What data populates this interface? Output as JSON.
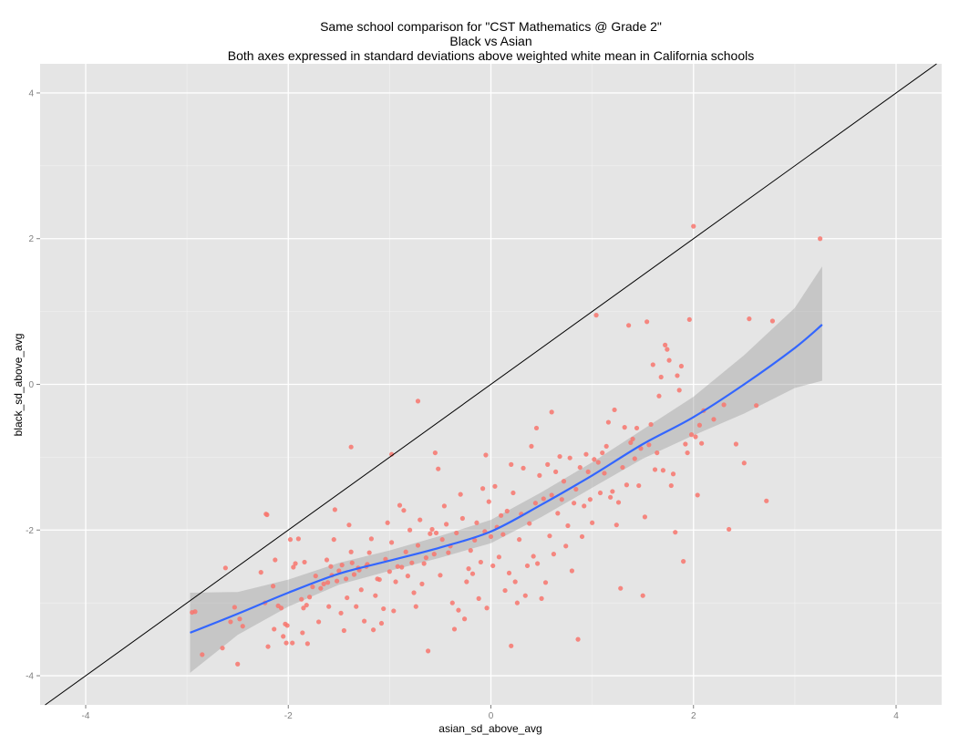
{
  "chart_data": {
    "type": "scatter",
    "title": "Same school comparison for \"CST Mathematics @ Grade 2\"",
    "subtitle_lines": [
      "Black vs Asian",
      "Both axes expressed in standard deviations above weighted white mean in California schools"
    ],
    "xlabel": "asian_sd_above_avg",
    "ylabel": "black_sd_above_avg",
    "xlim": [
      -4.45,
      4.45
    ],
    "ylim": [
      -4.4,
      4.4
    ],
    "xticks": [
      -4,
      -2,
      0,
      2,
      4
    ],
    "yticks": [
      -4,
      -2,
      0,
      2,
      4
    ],
    "tick_labels_x": [
      "-4",
      "-2",
      "0",
      "2",
      "4"
    ],
    "tick_labels_y": [
      "-4",
      "-2",
      "0",
      "2",
      "4"
    ],
    "grid": true,
    "background_color": "#e5e5e5",
    "point_color": "#f8766d",
    "smooth_color": "#3366ff",
    "ribbon_color": "#999999",
    "reference_line": {
      "slope": 1,
      "intercept": 0,
      "color": "#000000"
    },
    "points": [
      [
        -2.95,
        -3.13
      ],
      [
        -2.92,
        -3.12
      ],
      [
        -2.85,
        -3.71
      ],
      [
        -2.65,
        -3.62
      ],
      [
        -2.62,
        -2.52
      ],
      [
        -2.57,
        -3.26
      ],
      [
        -2.53,
        -3.06
      ],
      [
        -2.5,
        -3.84
      ],
      [
        -2.48,
        -3.22
      ],
      [
        -2.45,
        -3.32
      ],
      [
        -2.27,
        -2.58
      ],
      [
        -2.23,
        -3.0
      ],
      [
        -2.22,
        -1.78
      ],
      [
        -2.21,
        -1.79
      ],
      [
        -2.2,
        -3.6
      ],
      [
        -2.15,
        -2.77
      ],
      [
        -2.14,
        -3.36
      ],
      [
        -2.13,
        -2.41
      ],
      [
        -2.1,
        -3.04
      ],
      [
        -2.07,
        -3.07
      ],
      [
        -2.05,
        -3.46
      ],
      [
        -2.03,
        -3.29
      ],
      [
        -2.02,
        -3.55
      ],
      [
        -2.01,
        -3.31
      ],
      [
        -1.98,
        -2.13
      ],
      [
        -1.96,
        -3.55
      ],
      [
        -1.95,
        -2.51
      ],
      [
        -1.93,
        -2.46
      ],
      [
        -1.9,
        -2.12
      ],
      [
        -1.87,
        -2.95
      ],
      [
        -1.86,
        -3.41
      ],
      [
        -1.85,
        -3.07
      ],
      [
        -1.84,
        -2.44
      ],
      [
        -1.82,
        -3.03
      ],
      [
        -1.81,
        -3.56
      ],
      [
        -1.79,
        -2.92
      ],
      [
        -1.76,
        -2.78
      ],
      [
        -1.73,
        -2.63
      ],
      [
        -1.7,
        -3.26
      ],
      [
        -1.68,
        -2.8
      ],
      [
        -1.65,
        -2.74
      ],
      [
        -1.62,
        -2.41
      ],
      [
        -1.61,
        -2.72
      ],
      [
        -1.6,
        -3.05
      ],
      [
        -1.58,
        -2.5
      ],
      [
        -1.57,
        -2.62
      ],
      [
        -1.55,
        -2.13
      ],
      [
        -1.54,
        -1.72
      ],
      [
        -1.52,
        -2.7
      ],
      [
        -1.5,
        -2.56
      ],
      [
        -1.48,
        -3.14
      ],
      [
        -1.47,
        -2.48
      ],
      [
        -1.45,
        -3.38
      ],
      [
        -1.43,
        -2.67
      ],
      [
        -1.42,
        -2.93
      ],
      [
        -1.4,
        -1.93
      ],
      [
        -1.38,
        -2.3
      ],
      [
        -1.37,
        -2.45
      ],
      [
        -1.35,
        -2.61
      ],
      [
        -1.33,
        -3.05
      ],
      [
        -1.31,
        -2.52
      ],
      [
        -1.3,
        -2.55
      ],
      [
        -1.28,
        -2.82
      ],
      [
        -1.25,
        -3.25
      ],
      [
        -1.23,
        -2.5
      ],
      [
        -1.22,
        -2.47
      ],
      [
        -1.2,
        -2.31
      ],
      [
        -1.18,
        -2.12
      ],
      [
        -1.16,
        -3.37
      ],
      [
        -1.14,
        -2.9
      ],
      [
        -1.12,
        -2.67
      ],
      [
        -1.1,
        -2.68
      ],
      [
        -1.08,
        -3.28
      ],
      [
        -1.06,
        -3.08
      ],
      [
        -1.04,
        -2.4
      ],
      [
        -1.02,
        -1.9
      ],
      [
        -1.0,
        -2.57
      ],
      [
        -0.98,
        -2.17
      ],
      [
        -0.96,
        -3.11
      ],
      [
        -0.94,
        -2.71
      ],
      [
        -0.92,
        -2.5
      ],
      [
        -0.9,
        -1.66
      ],
      [
        -0.88,
        -2.51
      ],
      [
        -0.86,
        -1.73
      ],
      [
        -0.84,
        -2.3
      ],
      [
        -0.82,
        -2.63
      ],
      [
        -0.8,
        -2.0
      ],
      [
        -0.78,
        -2.45
      ],
      [
        -0.76,
        -2.86
      ],
      [
        -0.74,
        -3.05
      ],
      [
        -0.72,
        -2.21
      ],
      [
        -0.7,
        -1.86
      ],
      [
        -0.68,
        -2.74
      ],
      [
        -0.66,
        -2.46
      ],
      [
        -0.64,
        -2.38
      ],
      [
        -0.62,
        -3.66
      ],
      [
        -0.6,
        -2.05
      ],
      [
        -0.58,
        -1.99
      ],
      [
        -0.56,
        -2.33
      ],
      [
        -0.54,
        -2.04
      ],
      [
        -0.52,
        -1.16
      ],
      [
        -0.5,
        -2.62
      ],
      [
        -0.48,
        -2.13
      ],
      [
        -0.46,
        -1.67
      ],
      [
        -0.44,
        -1.92
      ],
      [
        -0.42,
        -2.31
      ],
      [
        -0.4,
        -2.22
      ],
      [
        -0.38,
        -3.0
      ],
      [
        -0.36,
        -3.36
      ],
      [
        -0.34,
        -2.04
      ],
      [
        -0.32,
        -3.1
      ],
      [
        -0.3,
        -1.51
      ],
      [
        -0.28,
        -1.84
      ],
      [
        -0.26,
        -3.22
      ],
      [
        -0.24,
        -2.71
      ],
      [
        -0.22,
        -2.53
      ],
      [
        -0.2,
        -2.28
      ],
      [
        -0.18,
        -2.6
      ],
      [
        -0.16,
        -2.14
      ],
      [
        -0.14,
        -1.9
      ],
      [
        -0.12,
        -2.94
      ],
      [
        -0.1,
        -2.44
      ],
      [
        -0.08,
        -1.43
      ],
      [
        -0.06,
        -2.02
      ],
      [
        -0.04,
        -3.07
      ],
      [
        -0.02,
        -1.61
      ],
      [
        0.0,
        -2.09
      ],
      [
        0.02,
        -2.49
      ],
      [
        0.04,
        -1.4
      ],
      [
        0.06,
        -1.96
      ],
      [
        0.08,
        -2.37
      ],
      [
        0.1,
        -1.8
      ],
      [
        0.12,
        -2.06
      ],
      [
        0.14,
        -2.83
      ],
      [
        0.16,
        -1.74
      ],
      [
        0.18,
        -2.59
      ],
      [
        0.2,
        -3.59
      ],
      [
        0.22,
        -1.49
      ],
      [
        0.24,
        -2.71
      ],
      [
        0.26,
        -3.0
      ],
      [
        0.28,
        -2.13
      ],
      [
        0.3,
        -1.78
      ],
      [
        0.32,
        -1.15
      ],
      [
        0.34,
        -2.9
      ],
      [
        0.36,
        -2.49
      ],
      [
        0.38,
        -1.91
      ],
      [
        0.4,
        -0.85
      ],
      [
        0.42,
        -2.36
      ],
      [
        0.44,
        -1.63
      ],
      [
        0.46,
        -2.46
      ],
      [
        0.48,
        -1.25
      ],
      [
        0.5,
        -2.94
      ],
      [
        0.52,
        -1.57
      ],
      [
        0.54,
        -2.72
      ],
      [
        0.56,
        -1.1
      ],
      [
        0.58,
        -2.08
      ],
      [
        0.6,
        -1.52
      ],
      [
        0.62,
        -2.33
      ],
      [
        0.64,
        -1.2
      ],
      [
        0.66,
        -1.77
      ],
      [
        0.68,
        -0.99
      ],
      [
        0.7,
        -1.58
      ],
      [
        0.72,
        -1.33
      ],
      [
        0.74,
        -2.22
      ],
      [
        0.76,
        -1.94
      ],
      [
        0.78,
        -1.01
      ],
      [
        0.8,
        -2.56
      ],
      [
        0.82,
        -1.63
      ],
      [
        0.84,
        -1.44
      ],
      [
        0.86,
        -3.5
      ],
      [
        0.88,
        -1.14
      ],
      [
        0.9,
        -2.09
      ],
      [
        0.92,
        -1.67
      ],
      [
        0.94,
        -0.96
      ],
      [
        0.96,
        -1.2
      ],
      [
        0.98,
        -1.58
      ],
      [
        1.0,
        -1.9
      ],
      [
        1.02,
        -1.03
      ],
      [
        1.04,
        0.95
      ],
      [
        1.06,
        -1.07
      ],
      [
        1.08,
        -1.49
      ],
      [
        1.1,
        -0.94
      ],
      [
        1.12,
        -1.22
      ],
      [
        1.14,
        -0.85
      ],
      [
        1.16,
        -0.52
      ],
      [
        1.18,
        -1.55
      ],
      [
        1.2,
        -1.47
      ],
      [
        1.22,
        -0.35
      ],
      [
        1.24,
        -1.93
      ],
      [
        1.26,
        -1.62
      ],
      [
        1.28,
        -2.8
      ],
      [
        1.3,
        -1.14
      ],
      [
        1.32,
        -0.59
      ],
      [
        1.34,
        -1.38
      ],
      [
        1.36,
        0.81
      ],
      [
        1.38,
        -0.8
      ],
      [
        1.4,
        -0.75
      ],
      [
        1.42,
        -1.02
      ],
      [
        1.44,
        -0.6
      ],
      [
        1.46,
        -1.39
      ],
      [
        1.48,
        -0.88
      ],
      [
        1.5,
        -2.9
      ],
      [
        1.52,
        -1.82
      ],
      [
        1.54,
        0.86
      ],
      [
        1.56,
        -0.83
      ],
      [
        1.58,
        -0.55
      ],
      [
        1.6,
        0.27
      ],
      [
        1.62,
        -1.17
      ],
      [
        1.64,
        -0.94
      ],
      [
        1.66,
        -0.16
      ],
      [
        1.68,
        0.1
      ],
      [
        1.7,
        -1.18
      ],
      [
        1.72,
        0.54
      ],
      [
        1.74,
        0.48
      ],
      [
        1.76,
        0.33
      ],
      [
        1.78,
        -1.39
      ],
      [
        1.8,
        -1.23
      ],
      [
        1.82,
        -2.03
      ],
      [
        1.84,
        0.12
      ],
      [
        1.86,
        -0.08
      ],
      [
        1.88,
        0.25
      ],
      [
        1.9,
        -2.43
      ],
      [
        1.92,
        -0.82
      ],
      [
        1.94,
        -0.94
      ],
      [
        1.96,
        0.89
      ],
      [
        1.98,
        -0.69
      ],
      [
        2.0,
        2.17
      ],
      [
        2.02,
        -0.72
      ],
      [
        2.04,
        -1.52
      ],
      [
        2.06,
        -0.56
      ],
      [
        2.08,
        -0.81
      ],
      [
        2.1,
        -0.36
      ],
      [
        2.2,
        -0.48
      ],
      [
        2.3,
        -0.28
      ],
      [
        2.35,
        -1.99
      ],
      [
        2.42,
        -0.82
      ],
      [
        2.5,
        -1.08
      ],
      [
        2.55,
        0.9
      ],
      [
        2.62,
        -0.29
      ],
      [
        2.72,
        -1.6
      ],
      [
        2.78,
        0.87
      ],
      [
        3.25,
        2.0
      ],
      [
        -0.72,
        -0.23
      ],
      [
        -1.38,
        -0.86
      ],
      [
        -0.98,
        -0.96
      ],
      [
        -0.55,
        -0.94
      ],
      [
        -0.05,
        -0.97
      ],
      [
        0.2,
        -1.1
      ],
      [
        0.45,
        -0.6
      ],
      [
        0.6,
        -0.38
      ]
    ],
    "smooth_line": [
      [
        -2.97,
        -3.41
      ],
      [
        -2.5,
        -3.15
      ],
      [
        -2.0,
        -2.86
      ],
      [
        -1.5,
        -2.6
      ],
      [
        -1.0,
        -2.42
      ],
      [
        -0.5,
        -2.24
      ],
      [
        0.0,
        -2.02
      ],
      [
        0.5,
        -1.65
      ],
      [
        1.0,
        -1.25
      ],
      [
        1.5,
        -0.82
      ],
      [
        2.0,
        -0.45
      ],
      [
        2.5,
        0.0
      ],
      [
        3.0,
        0.5
      ],
      [
        3.27,
        0.82
      ]
    ],
    "ribbon_upper": [
      [
        -2.97,
        -2.86
      ],
      [
        -2.5,
        -2.85
      ],
      [
        -2.0,
        -2.68
      ],
      [
        -1.5,
        -2.45
      ],
      [
        -1.0,
        -2.28
      ],
      [
        -0.5,
        -2.08
      ],
      [
        0.0,
        -1.86
      ],
      [
        0.5,
        -1.48
      ],
      [
        1.0,
        -1.07
      ],
      [
        1.5,
        -0.62
      ],
      [
        2.0,
        -0.17
      ],
      [
        2.5,
        0.4
      ],
      [
        3.0,
        1.05
      ],
      [
        3.27,
        1.62
      ]
    ],
    "ribbon_lower": [
      [
        -2.97,
        -3.96
      ],
      [
        -2.5,
        -3.44
      ],
      [
        -2.0,
        -3.05
      ],
      [
        -1.5,
        -2.75
      ],
      [
        -1.0,
        -2.56
      ],
      [
        -0.5,
        -2.38
      ],
      [
        0.0,
        -2.18
      ],
      [
        0.5,
        -1.82
      ],
      [
        1.0,
        -1.42
      ],
      [
        1.5,
        -1.02
      ],
      [
        2.0,
        -0.7
      ],
      [
        2.5,
        -0.4
      ],
      [
        3.0,
        -0.05
      ],
      [
        3.27,
        0.05
      ]
    ]
  }
}
